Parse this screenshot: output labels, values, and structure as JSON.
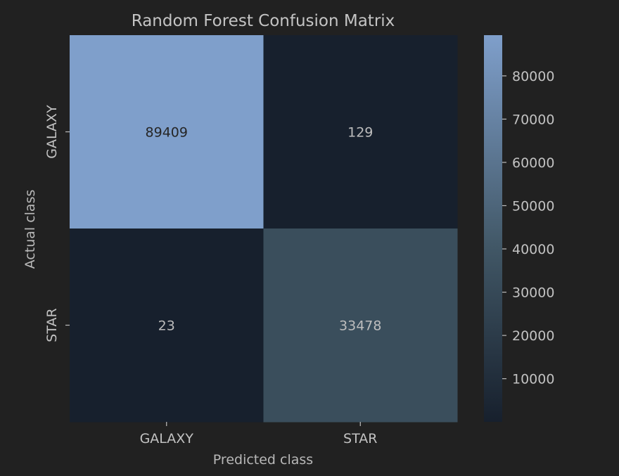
{
  "chart_data": {
    "type": "heatmap",
    "title": "Random Forest Confusion Matrix",
    "xlabel": "Predicted class",
    "ylabel": "Actual class",
    "x_categories": [
      "GALAXY",
      "STAR"
    ],
    "y_categories": [
      "GALAXY",
      "STAR"
    ],
    "values": [
      [
        89409,
        129
      ],
      [
        23,
        33478
      ]
    ],
    "annotations": [
      [
        "89409",
        "129"
      ],
      [
        "23",
        "33478"
      ]
    ],
    "colorbar": {
      "range": [
        23,
        89409
      ],
      "ticks": [
        10000,
        20000,
        30000,
        40000,
        50000,
        60000,
        70000,
        80000
      ],
      "tick_labels": [
        "10000",
        "20000",
        "30000",
        "40000",
        "50000",
        "60000",
        "70000",
        "80000"
      ],
      "color_low": "#17202d",
      "color_mid": "#415766",
      "color_high": "#7f9fcb"
    },
    "annotation_colors": {
      "on_light": "#262626",
      "on_dark": "#bdbdbd"
    },
    "background": "#212121"
  }
}
